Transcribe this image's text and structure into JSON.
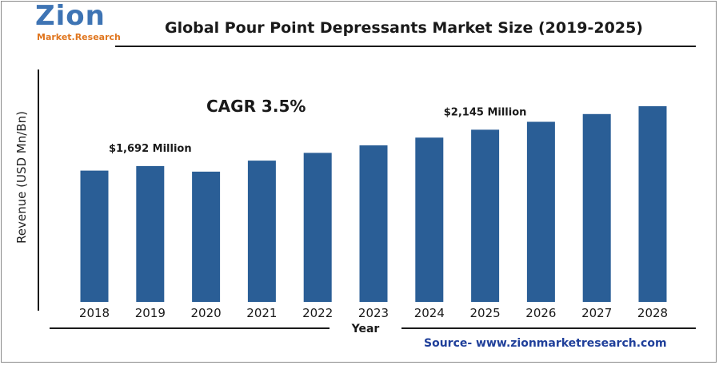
{
  "logo": {
    "name": "Zion",
    "subtitle": "Market.Research"
  },
  "chart_data": {
    "type": "bar",
    "title": "Global Pour Point Depressants Market Size (2019-2025)",
    "xlabel": "Year",
    "ylabel": "Revenue (USD Mn/Bn)",
    "categories": [
      "2018",
      "2019",
      "2020",
      "2021",
      "2022",
      "2023",
      "2024",
      "2025",
      "2026",
      "2027",
      "2028"
    ],
    "values": [
      1635,
      1692,
      1622,
      1760,
      1856,
      1950,
      2046,
      2145,
      2243,
      2340,
      2437
    ],
    "ylim": [
      0,
      2437
    ],
    "grid": false,
    "legend": "none",
    "bar_color": "#2a5e96",
    "annotations": {
      "cagr": "CAGR 3.5%",
      "labels": [
        {
          "index": 1,
          "text": "$1,692 Million"
        },
        {
          "index": 7,
          "text": "$2,145 Million"
        }
      ]
    }
  },
  "source": "Source- www.zionmarketresearch.com"
}
